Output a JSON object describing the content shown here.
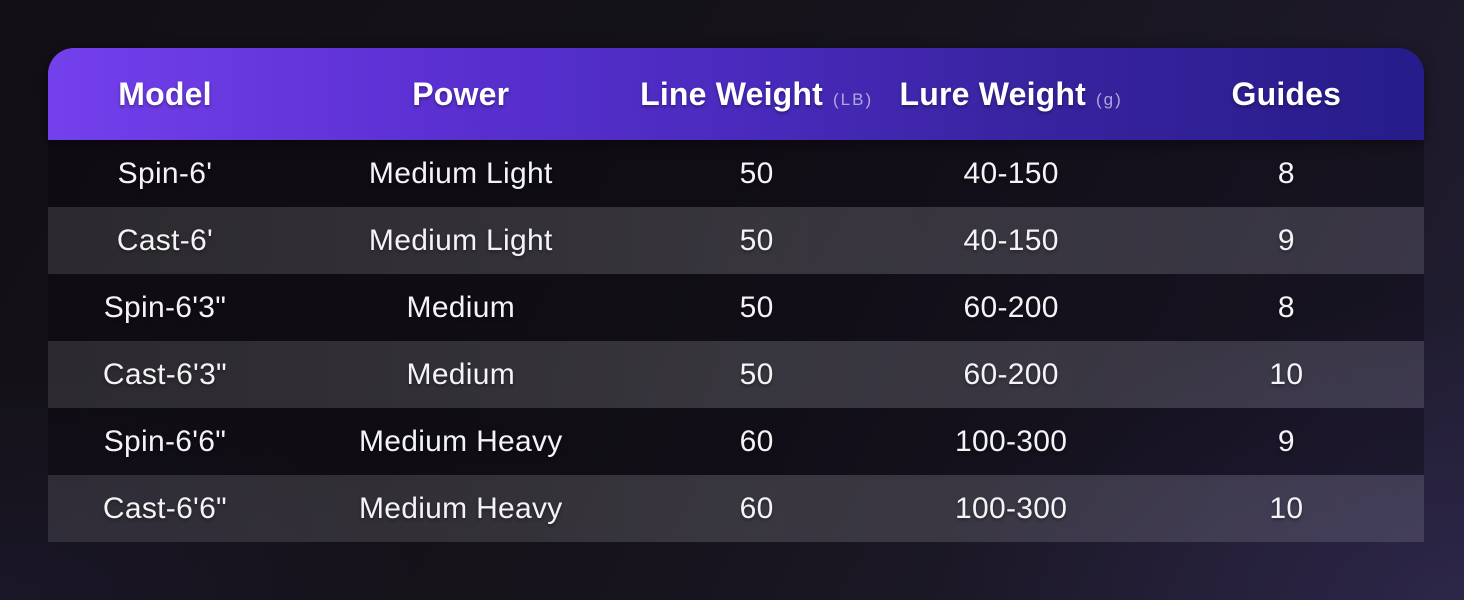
{
  "table": {
    "columns": [
      {
        "key": "model",
        "label": "Model",
        "unit": ""
      },
      {
        "key": "power",
        "label": "Power",
        "unit": ""
      },
      {
        "key": "line-weight",
        "label": "Line Weight",
        "unit": "(LB)"
      },
      {
        "key": "lure-weight",
        "label": "Lure Weight",
        "unit": "(g)"
      },
      {
        "key": "guides",
        "label": "Guides",
        "unit": ""
      }
    ],
    "rows": [
      [
        "Spin-6'",
        "Medium Light",
        "50",
        "40-150",
        "8"
      ],
      [
        "Cast-6'",
        "Medium Light",
        "50",
        "40-150",
        "9"
      ],
      [
        "Spin-6'3\"",
        "Medium",
        "50",
        "60-200",
        "8"
      ],
      [
        "Cast-6'3\"",
        "Medium",
        "50",
        "60-200",
        "10"
      ],
      [
        "Spin-6'6\"",
        "Medium Heavy",
        "60",
        "100-300",
        "9"
      ],
      [
        "Cast-6'6\"",
        "Medium Heavy",
        "60",
        "100-300",
        "10"
      ]
    ]
  },
  "colors": {
    "header_gradient_left": "#7440ec",
    "header_gradient_mid": "#4a2bbe",
    "header_gradient_right": "#261c8a",
    "page_background_dark": "#121015",
    "page_background_purple": "#221e33",
    "row_even_band": "#3a3740",
    "row_odd_band": "#1b1822",
    "header_text": "#ffffff",
    "unit_text": "#cdc8e8",
    "cell_text": "#f4f3f6"
  }
}
